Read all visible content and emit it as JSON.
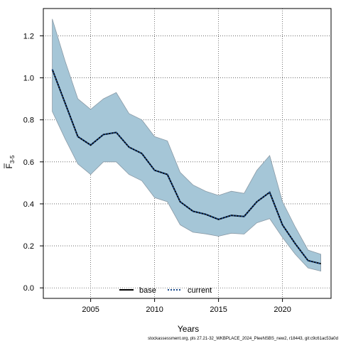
{
  "chart_data": {
    "type": "line",
    "xlabel": "Years",
    "ylabel_main": "F",
    "ylabel_sub": "3-5",
    "xlim": [
      2001.3,
      2023.8
    ],
    "ylim": [
      -0.05,
      1.33
    ],
    "x_ticks": [
      2005,
      2010,
      2015,
      2020
    ],
    "y_ticks": [
      0.0,
      0.2,
      0.4,
      0.6,
      0.8,
      1.0,
      1.2
    ],
    "y_tick_labels": [
      "0.0",
      "0.2",
      "0.4",
      "0.6",
      "0.8",
      "1.0",
      "1.2"
    ],
    "grid": true,
    "legend_position": "bottom-center",
    "band_color": "#a5c6d7",
    "band_edge_color": "#8a9aa6",
    "x": [
      2002,
      2003,
      2004,
      2005,
      2006,
      2007,
      2008,
      2009,
      2010,
      2011,
      2012,
      2013,
      2014,
      2015,
      2016,
      2017,
      2018,
      2019,
      2020,
      2021,
      2022,
      2023
    ],
    "band_upper": [
      1.28,
      1.08,
      0.9,
      0.85,
      0.9,
      0.93,
      0.83,
      0.8,
      0.72,
      0.7,
      0.55,
      0.49,
      0.46,
      0.44,
      0.46,
      0.45,
      0.56,
      0.63,
      0.41,
      0.29,
      0.18,
      0.16
    ],
    "band_lower": [
      0.84,
      0.71,
      0.59,
      0.54,
      0.6,
      0.6,
      0.54,
      0.51,
      0.43,
      0.41,
      0.3,
      0.265,
      0.257,
      0.246,
      0.26,
      0.256,
      0.31,
      0.33,
      0.24,
      0.16,
      0.095,
      0.08
    ],
    "series": [
      {
        "name": "base",
        "color": "#000000",
        "style": "solid",
        "values": [
          1.04,
          0.88,
          0.72,
          0.68,
          0.73,
          0.74,
          0.67,
          0.64,
          0.56,
          0.54,
          0.41,
          0.365,
          0.35,
          0.326,
          0.345,
          0.34,
          0.41,
          0.455,
          0.3,
          0.21,
          0.13,
          0.115
        ]
      },
      {
        "name": "current",
        "color": "#1a4b8c",
        "style": "dotted",
        "values": [
          1.04,
          0.88,
          0.72,
          0.68,
          0.73,
          0.74,
          0.67,
          0.64,
          0.56,
          0.54,
          0.41,
          0.365,
          0.35,
          0.326,
          0.345,
          0.34,
          0.41,
          0.455,
          0.3,
          0.21,
          0.13,
          0.115
        ]
      }
    ],
    "footnote": "stockassessment.org, pls 27.21-32_WKBPLACE_2024_PleeNSBS_new2, r18443, git:c9c61ac53a0d"
  }
}
